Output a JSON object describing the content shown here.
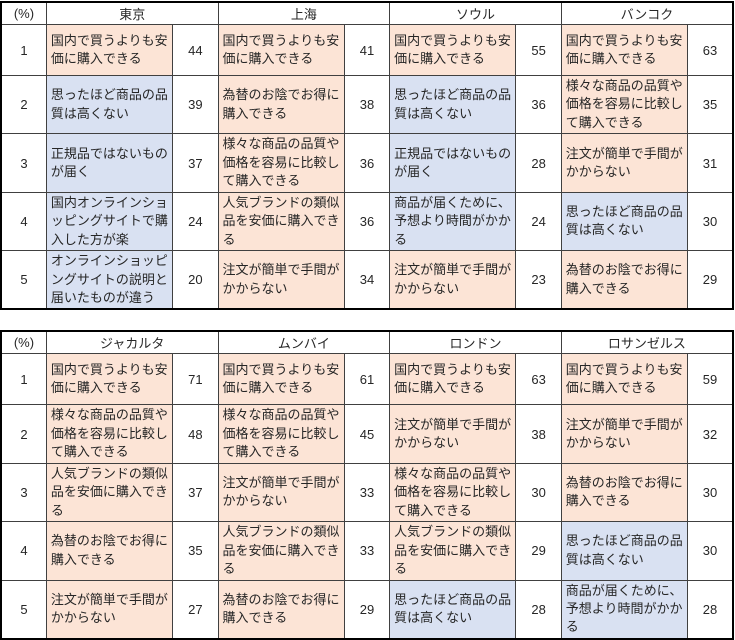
{
  "colors": {
    "positive_highlight": "#FCE4D6",
    "negative_highlight": "#D9E1F2",
    "inner_border": "#404040",
    "outer_border": "#000000"
  },
  "chart_data": [
    {
      "type": "table",
      "unit_label": "(%)",
      "columns": [
        "東京",
        "上海",
        "ソウル",
        "バンコク"
      ],
      "rows": [
        {
          "rank": 1,
          "entries": [
            {
              "city": "東京",
              "reason": "国内で買うよりも安価に購入できる",
              "value": 44,
              "highlight": "orange"
            },
            {
              "city": "上海",
              "reason": "国内で買うよりも安価に購入できる",
              "value": 41,
              "highlight": "orange"
            },
            {
              "city": "ソウル",
              "reason": "国内で買うよりも安価に購入できる",
              "value": 55,
              "highlight": "orange"
            },
            {
              "city": "バンコク",
              "reason": "国内で買うよりも安価に購入できる",
              "value": 63,
              "highlight": "orange"
            }
          ]
        },
        {
          "rank": 2,
          "entries": [
            {
              "city": "東京",
              "reason": "思ったほど商品の品質は高くない",
              "value": 39,
              "highlight": "blue"
            },
            {
              "city": "上海",
              "reason": "為替のお陰でお得に購入できる",
              "value": 38,
              "highlight": "orange"
            },
            {
              "city": "ソウル",
              "reason": "思ったほど商品の品質は高くない",
              "value": 36,
              "highlight": "blue"
            },
            {
              "city": "バンコク",
              "reason": "様々な商品の品質や価格を容易に比較して購入できる",
              "value": 35,
              "highlight": "orange"
            }
          ]
        },
        {
          "rank": 3,
          "entries": [
            {
              "city": "東京",
              "reason": "正規品ではないものが届く",
              "value": 37,
              "highlight": "blue"
            },
            {
              "city": "上海",
              "reason": "様々な商品の品質や価格を容易に比較して購入できる",
              "value": 36,
              "highlight": "orange"
            },
            {
              "city": "ソウル",
              "reason": "正規品ではないものが届く",
              "value": 28,
              "highlight": "blue"
            },
            {
              "city": "バンコク",
              "reason": "注文が簡単で手間がかからない",
              "value": 31,
              "highlight": "orange"
            }
          ]
        },
        {
          "rank": 4,
          "entries": [
            {
              "city": "東京",
              "reason": "国内オンラインショッピングサイトで購入した方が楽",
              "value": 24,
              "highlight": "blue"
            },
            {
              "city": "上海",
              "reason": "人気ブランドの類似品を安価に購入できる",
              "value": 36,
              "highlight": "orange"
            },
            {
              "city": "ソウル",
              "reason": "商品が届くために、予想より時間がかかる",
              "value": 24,
              "highlight": "blue"
            },
            {
              "city": "バンコク",
              "reason": "思ったほど商品の品質は高くない",
              "value": 30,
              "highlight": "blue"
            }
          ]
        },
        {
          "rank": 5,
          "entries": [
            {
              "city": "東京",
              "reason": "オンラインショッピングサイトの説明と届いたものが違う",
              "value": 20,
              "highlight": "blue"
            },
            {
              "city": "上海",
              "reason": "注文が簡単で手間がかからない",
              "value": 34,
              "highlight": "orange"
            },
            {
              "city": "ソウル",
              "reason": "注文が簡単で手間がかからない",
              "value": 23,
              "highlight": "orange"
            },
            {
              "city": "バンコク",
              "reason": "為替のお陰でお得に購入できる",
              "value": 29,
              "highlight": "orange"
            }
          ]
        }
      ]
    },
    {
      "type": "table",
      "unit_label": "(%)",
      "columns": [
        "ジャカルタ",
        "ムンバイ",
        "ロンドン",
        "ロサンゼルス"
      ],
      "rows": [
        {
          "rank": 1,
          "entries": [
            {
              "city": "ジャカルタ",
              "reason": "国内で買うよりも安価に購入できる",
              "value": 71,
              "highlight": "orange"
            },
            {
              "city": "ムンバイ",
              "reason": "国内で買うよりも安価に購入できる",
              "value": 61,
              "highlight": "orange"
            },
            {
              "city": "ロンドン",
              "reason": "国内で買うよりも安価に購入できる",
              "value": 63,
              "highlight": "orange"
            },
            {
              "city": "ロサンゼルス",
              "reason": "国内で買うよりも安価に購入できる",
              "value": 59,
              "highlight": "orange"
            }
          ]
        },
        {
          "rank": 2,
          "entries": [
            {
              "city": "ジャカルタ",
              "reason": "様々な商品の品質や価格を容易に比較して購入できる",
              "value": 48,
              "highlight": "orange"
            },
            {
              "city": "ムンバイ",
              "reason": "様々な商品の品質や価格を容易に比較して購入できる",
              "value": 45,
              "highlight": "orange"
            },
            {
              "city": "ロンドン",
              "reason": "注文が簡単で手間がかからない",
              "value": 38,
              "highlight": "orange"
            },
            {
              "city": "ロサンゼルス",
              "reason": "注文が簡単で手間がかからない",
              "value": 32,
              "highlight": "orange"
            }
          ]
        },
        {
          "rank": 3,
          "entries": [
            {
              "city": "ジャカルタ",
              "reason": "人気ブランドの類似品を安価に購入できる",
              "value": 37,
              "highlight": "orange"
            },
            {
              "city": "ムンバイ",
              "reason": "注文が簡単で手間がかからない",
              "value": 33,
              "highlight": "orange"
            },
            {
              "city": "ロンドン",
              "reason": "様々な商品の品質や価格を容易に比較して購入できる",
              "value": 30,
              "highlight": "orange"
            },
            {
              "city": "ロサンゼルス",
              "reason": "為替のお陰でお得に購入できる",
              "value": 30,
              "highlight": "orange"
            }
          ]
        },
        {
          "rank": 4,
          "entries": [
            {
              "city": "ジャカルタ",
              "reason": "為替のお陰でお得に購入できる",
              "value": 35,
              "highlight": "orange"
            },
            {
              "city": "ムンバイ",
              "reason": "人気ブランドの類似品を安価に購入できる",
              "value": 33,
              "highlight": "orange"
            },
            {
              "city": "ロンドン",
              "reason": "人気ブランドの類似品を安価に購入できる",
              "value": 29,
              "highlight": "orange"
            },
            {
              "city": "ロサンゼルス",
              "reason": "思ったほど商品の品質は高くない",
              "value": 30,
              "highlight": "blue"
            }
          ]
        },
        {
          "rank": 5,
          "entries": [
            {
              "city": "ジャカルタ",
              "reason": "注文が簡単で手間がかからない",
              "value": 27,
              "highlight": "orange"
            },
            {
              "city": "ムンバイ",
              "reason": "為替のお陰でお得に購入できる",
              "value": 29,
              "highlight": "orange"
            },
            {
              "city": "ロンドン",
              "reason": "思ったほど商品の品質は高くない",
              "value": 28,
              "highlight": "blue"
            },
            {
              "city": "ロサンゼルス",
              "reason": "商品が届くために、予想より時間がかかる",
              "value": 28,
              "highlight": "blue"
            }
          ]
        }
      ]
    }
  ]
}
